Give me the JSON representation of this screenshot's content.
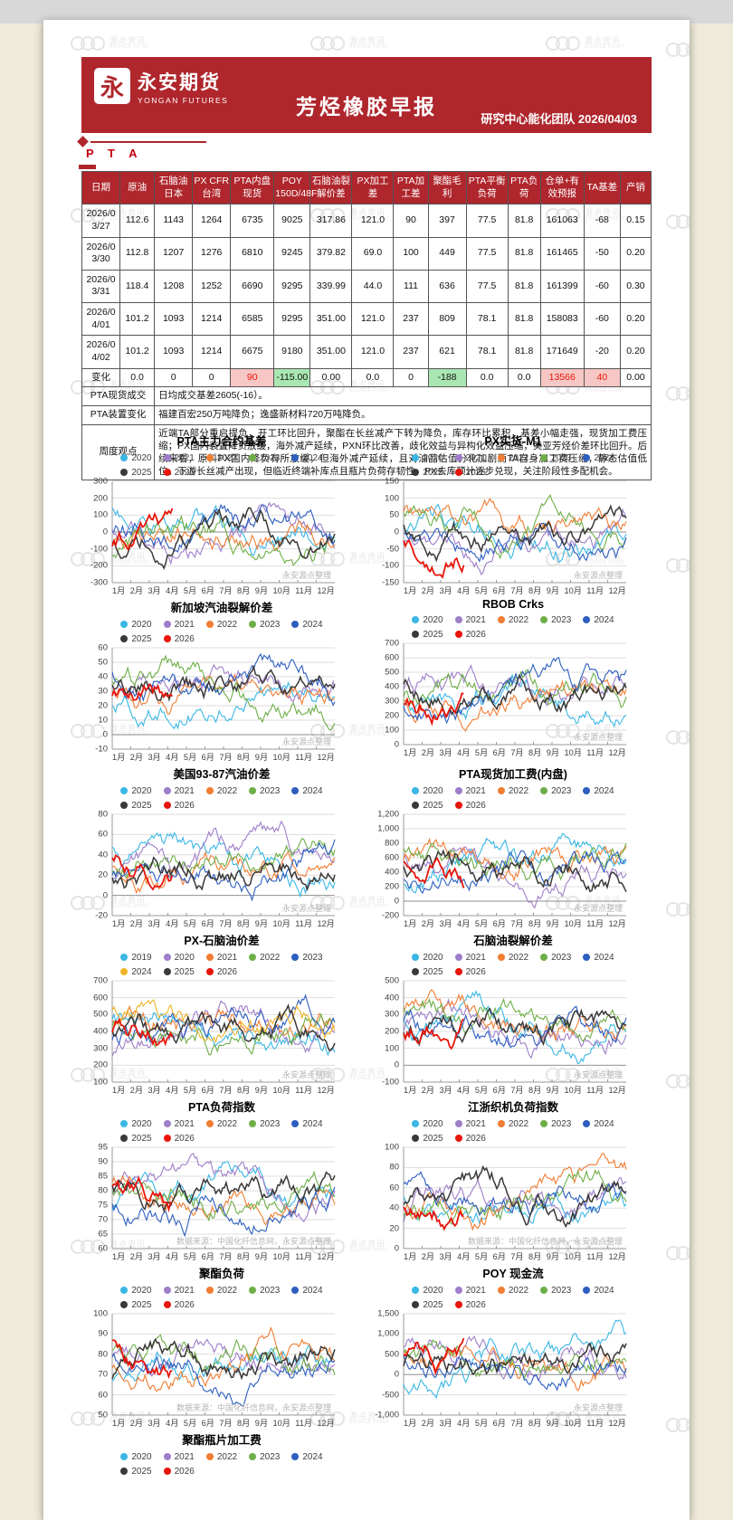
{
  "header": {
    "logo_char": "永",
    "brand_cn": "永安期货",
    "brand_en": "YONGAN FUTURES",
    "title": "芳烃橡胶早报",
    "subtitle": "研究中心能化团队  2026/04/03",
    "section": "P T A"
  },
  "watermark": {
    "cn": "源点资讯",
    "en": "SOURCE POINT"
  },
  "table": {
    "headers": [
      "日期",
      "原油",
      "石脑油日本",
      "PX CFR台湾",
      "PTA内盘现货",
      "POY 150D/48F",
      "石脑油裂解价差",
      "PX加工差",
      "PTA加工差",
      "聚酯毛利",
      "PTA平衡负荷",
      "PTA负荷",
      "仓单+有效预报",
      "TA基差",
      "产销"
    ],
    "rows": [
      {
        "cells": [
          "2026/03/27",
          "112.6",
          "1143",
          "1264",
          "6735",
          "9025",
          "317.86",
          "121.0",
          "90",
          "397",
          "77.5",
          "81.8",
          "161063",
          "-68",
          "0.15"
        ]
      },
      {
        "cells": [
          "2026/03/30",
          "112.8",
          "1207",
          "1276",
          "6810",
          "9245",
          "379.82",
          "69.0",
          "100",
          "449",
          "77.5",
          "81.8",
          "161465",
          "-50",
          "0.20"
        ]
      },
      {
        "cells": [
          "2026/03/31",
          "118.4",
          "1208",
          "1252",
          "6690",
          "9295",
          "339.99",
          "44.0",
          "111",
          "636",
          "77.5",
          "81.8",
          "161399",
          "-60",
          "0.30"
        ]
      },
      {
        "cells": [
          "2026/04/01",
          "101.2",
          "1093",
          "1214",
          "6585",
          "9295",
          "351.00",
          "121.0",
          "237",
          "809",
          "78.1",
          "81.8",
          "158083",
          "-60",
          "0.20"
        ]
      },
      {
        "cells": [
          "2026/04/02",
          "101.2",
          "1093",
          "1214",
          "6675",
          "9180",
          "351.00",
          "121.0",
          "237",
          "621",
          "78.1",
          "81.8",
          "171649",
          "-20",
          "0.20"
        ]
      },
      {
        "cells": [
          "变化",
          "0.0",
          "0",
          "0",
          "90",
          "-115.00",
          "0.00",
          "0.0",
          "0",
          "-188",
          "0.0",
          "0.0",
          "13566",
          "40",
          "0.00"
        ],
        "is_change": true,
        "highlights": {
          "4": "pink",
          "5": "green",
          "9": "green",
          "12": "pink",
          "13": "pink"
        }
      }
    ],
    "info_rows": [
      {
        "label": "PTA现货成交",
        "content": "日均成交基差2605(-16）。"
      },
      {
        "label": "PTA装置变化",
        "content": "福建百宏250万吨降负；逸盛新材料720万吨降负。"
      },
      {
        "label": "周度观点",
        "content": "近端TA部分重启提负，开工环比回升，聚酯在长丝减产下转为降负，库存环比累积，基差小幅走强，现货加工费压缩；PX国内装置降负放缓，海外减产延续，PXN环比改善，歧化效益与异构化效益压缩，美亚芳烃价差环比回升。后续来看，原料PX国内降负有所放缓，但海外减产延续，且对油品估值分化加剧而TA自身加工费压缩，静态估值低位。下游长丝减产出现，但临近终端补库点且瓶片负荷存韧性，PX去库预计逐步兑现，关注阶段性多配机会。"
      }
    ]
  },
  "months": [
    "1月",
    "2月",
    "3月",
    "4月",
    "5月",
    "6月",
    "7月",
    "8月",
    "9月",
    "10月",
    "11月",
    "12月"
  ],
  "legend_default": [
    {
      "label": "2020",
      "color": "#3ab7e4"
    },
    {
      "label": "2021",
      "color": "#9e7ec9"
    },
    {
      "label": "2022",
      "color": "#f07d33"
    },
    {
      "label": "2023",
      "color": "#6eae48"
    },
    {
      "label": "2024",
      "color": "#2d5ebf"
    },
    {
      "label": "2025",
      "color": "#3b3838"
    },
    {
      "label": "2026",
      "color": "#e8150b"
    }
  ],
  "charts": [
    {
      "title": "PTA主力合约基差",
      "y_ticks": [
        "300",
        "200",
        "100",
        "0",
        "-100",
        "-200",
        "-300"
      ],
      "watermark": "永安源点整理"
    },
    {
      "title": "PX实货-M1",
      "y_ticks": [
        "150",
        "100",
        "50",
        "0",
        "-50",
        "-100",
        "-150"
      ],
      "watermark": "永安源点整理"
    },
    {
      "title": "新加坡汽油裂解价差",
      "y_ticks": [
        "60",
        "50",
        "40",
        "30",
        "20",
        "10",
        "0",
        "-10"
      ],
      "watermark": "永安源点整理"
    },
    {
      "title": "RBOB Crks",
      "y_ticks": [
        "700",
        "600",
        "500",
        "400",
        "300",
        "200",
        "100",
        "0"
      ],
      "watermark": "永安源点整理"
    },
    {
      "title": "美国93-87汽油价差",
      "y_ticks": [
        "80",
        "60",
        "40",
        "20",
        "0",
        "-20"
      ],
      "watermark": "永安源点整理"
    },
    {
      "title": "PTA现货加工费(内盘)",
      "y_ticks": [
        "1,200",
        "1,000",
        "800",
        "600",
        "400",
        "200",
        "0",
        "-200"
      ],
      "watermark": "永安源点整理"
    },
    {
      "title": "PX-石脑油价差",
      "legend": [
        {
          "label": "2019",
          "color": "#3ab7e4"
        },
        {
          "label": "2020",
          "color": "#9e7ec9"
        },
        {
          "label": "2021",
          "color": "#f07d33"
        },
        {
          "label": "2022",
          "color": "#6eae48"
        },
        {
          "label": "2023",
          "color": "#2d5ebf"
        },
        {
          "label": "2024",
          "color": "#f0b428"
        },
        {
          "label": "2025",
          "color": "#3b3838"
        },
        {
          "label": "2026",
          "color": "#e8150b"
        }
      ],
      "y_ticks": [
        "700",
        "600",
        "500",
        "400",
        "300",
        "200",
        "100"
      ],
      "watermark": "永安源点整理"
    },
    {
      "title": "石脑油裂解价差",
      "y_ticks": [
        "500",
        "400",
        "300",
        "200",
        "100",
        "0",
        "-100"
      ],
      "watermark": "永安源点整理"
    },
    {
      "title": "PTA负荷指数",
      "y_ticks": [
        "95",
        "90",
        "85",
        "80",
        "75",
        "70",
        "65",
        "60"
      ],
      "watermark": "数据来源：中国化纤信息网，永安源点整理"
    },
    {
      "title": "江浙织机负荷指数",
      "y_ticks": [
        "100",
        "80",
        "60",
        "40",
        "20",
        "0"
      ],
      "watermark": "数据来源：中国化纤信息网，永安源点整理"
    },
    {
      "title": "聚酯负荷",
      "y_ticks": [
        "100",
        "90",
        "80",
        "70",
        "60",
        "50"
      ],
      "watermark": "数据来源：中国化纤信息网，永安源点整理"
    },
    {
      "title": "POY 现金流",
      "y_ticks": [
        "1,500",
        "1,000",
        "500",
        "0",
        "-500",
        "-1,000"
      ],
      "watermark": "永安源点整理"
    },
    {
      "title": "聚酯瓶片加工费",
      "y_ticks": [],
      "watermark": "",
      "partial": true
    }
  ]
}
